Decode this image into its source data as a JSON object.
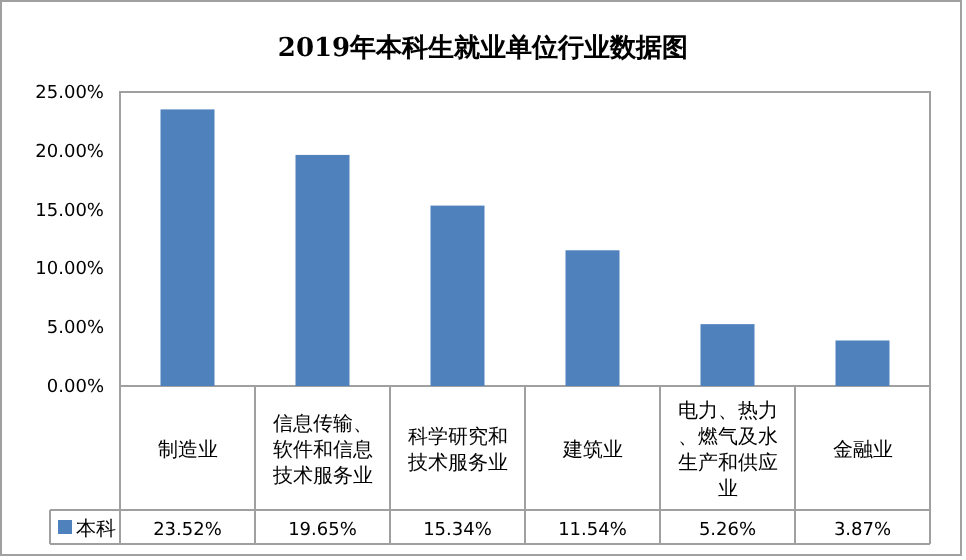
{
  "chart_data": {
    "type": "bar",
    "title": "2019年本科生就业单位行业数据图",
    "categories": [
      "制造业",
      "信息传输、软件和信息技术服务业",
      "科学研究和技术服务业",
      "建筑业",
      "电力、热力、燃气及水生产和供应业",
      "金融业"
    ],
    "series": [
      {
        "name": "本科",
        "color": "#4f81bd",
        "values": [
          23.52,
          19.65,
          15.34,
          11.54,
          5.26,
          3.87
        ],
        "value_labels": [
          "23.52%",
          "19.65%",
          "15.34%",
          "11.54%",
          "5.26%",
          "3.87%"
        ]
      }
    ],
    "ylim": [
      0,
      25
    ],
    "yticks": [
      {
        "value": 0,
        "label": "0.00%"
      },
      {
        "value": 5,
        "label": "5.00%"
      },
      {
        "value": 10,
        "label": "10.00%"
      },
      {
        "value": 15,
        "label": "15.00%"
      },
      {
        "value": 20,
        "label": "20.00%"
      },
      {
        "value": 25,
        "label": "25.00%"
      }
    ],
    "legend": "bottom left"
  }
}
